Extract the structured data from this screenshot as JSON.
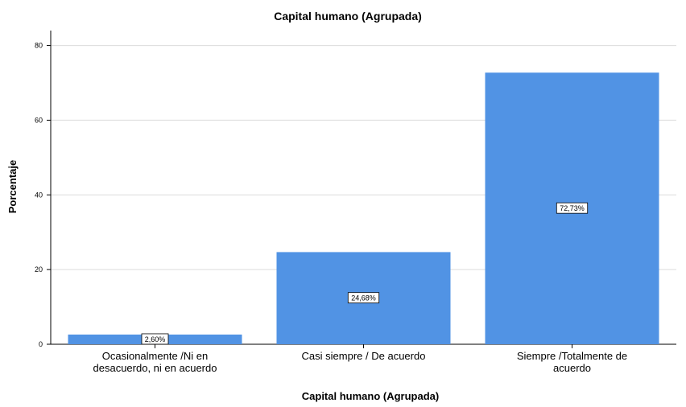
{
  "chart_data": {
    "type": "bar",
    "title": "Capital humano (Agrupada)",
    "xlabel": "Capital humano (Agrupada)",
    "ylabel": "Porcentaje",
    "categories": [
      [
        "Ocasionalmente /Ni en",
        "desacuerdo, ni en acuerdo"
      ],
      [
        "Casi siempre / De acuerdo"
      ],
      [
        "Siempre /Totalmente de",
        "acuerdo"
      ]
    ],
    "values": [
      2.6,
      24.68,
      72.73
    ],
    "data_labels": [
      "2,60%",
      "24,68%",
      "72,73%"
    ],
    "y_ticks": [
      0,
      20,
      40,
      60,
      80
    ],
    "ylim": [
      0,
      84
    ],
    "grid": true,
    "bar_color": "#5193e4"
  }
}
